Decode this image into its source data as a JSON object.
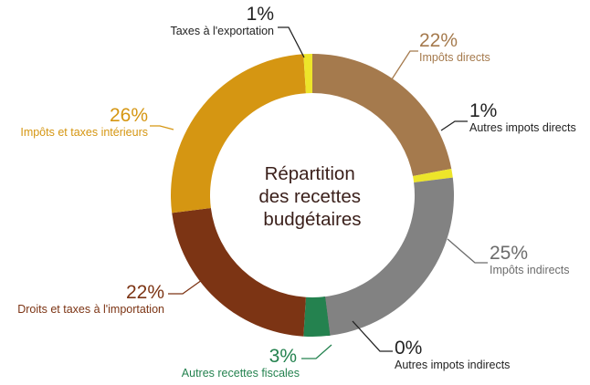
{
  "chart_data": {
    "type": "pie",
    "donut": true,
    "title": "Répartition des recettes budgétaires",
    "title_lines": [
      "Répartition",
      "des recettes",
      "budgétaires"
    ],
    "slices": [
      {
        "label": "Impôts directs",
        "value": 22,
        "percent_text": "22%",
        "color": "#a57a4d"
      },
      {
        "label": "Autres impots directs",
        "value": 1,
        "percent_text": "1%",
        "color": "#ede52a"
      },
      {
        "label": "Impôts indirects",
        "value": 25,
        "percent_text": "25%",
        "color": "#828282"
      },
      {
        "label": "Autres impots indirects",
        "value": 0,
        "percent_text": "0%",
        "color": "#3c3c3c"
      },
      {
        "label": "Autres recettes fiscales",
        "value": 3,
        "percent_text": "3%",
        "color": "#24824f"
      },
      {
        "label": "Droits et taxes à l'importation",
        "value": 22,
        "percent_text": "22%",
        "color": "#7c3414"
      },
      {
        "label": "Impôts et taxes intérieurs",
        "value": 26,
        "percent_text": "26%",
        "color": "#d59612"
      },
      {
        "label": "Taxes à l'exportation",
        "value": 1,
        "percent_text": "1%",
        "color": "#ede52a"
      }
    ],
    "label_colors": {
      "Impôts directs": "#a57a4d",
      "Autres impots directs": "#222222",
      "Impôts indirects": "#6c6c6c",
      "Autres impots indirects": "#222222",
      "Autres recettes fiscales": "#24824f",
      "Droits et taxes à l'importation": "#7c3414",
      "Impôts et taxes intérieurs": "#d59612",
      "Taxes à l'exportation": "#222222"
    }
  }
}
